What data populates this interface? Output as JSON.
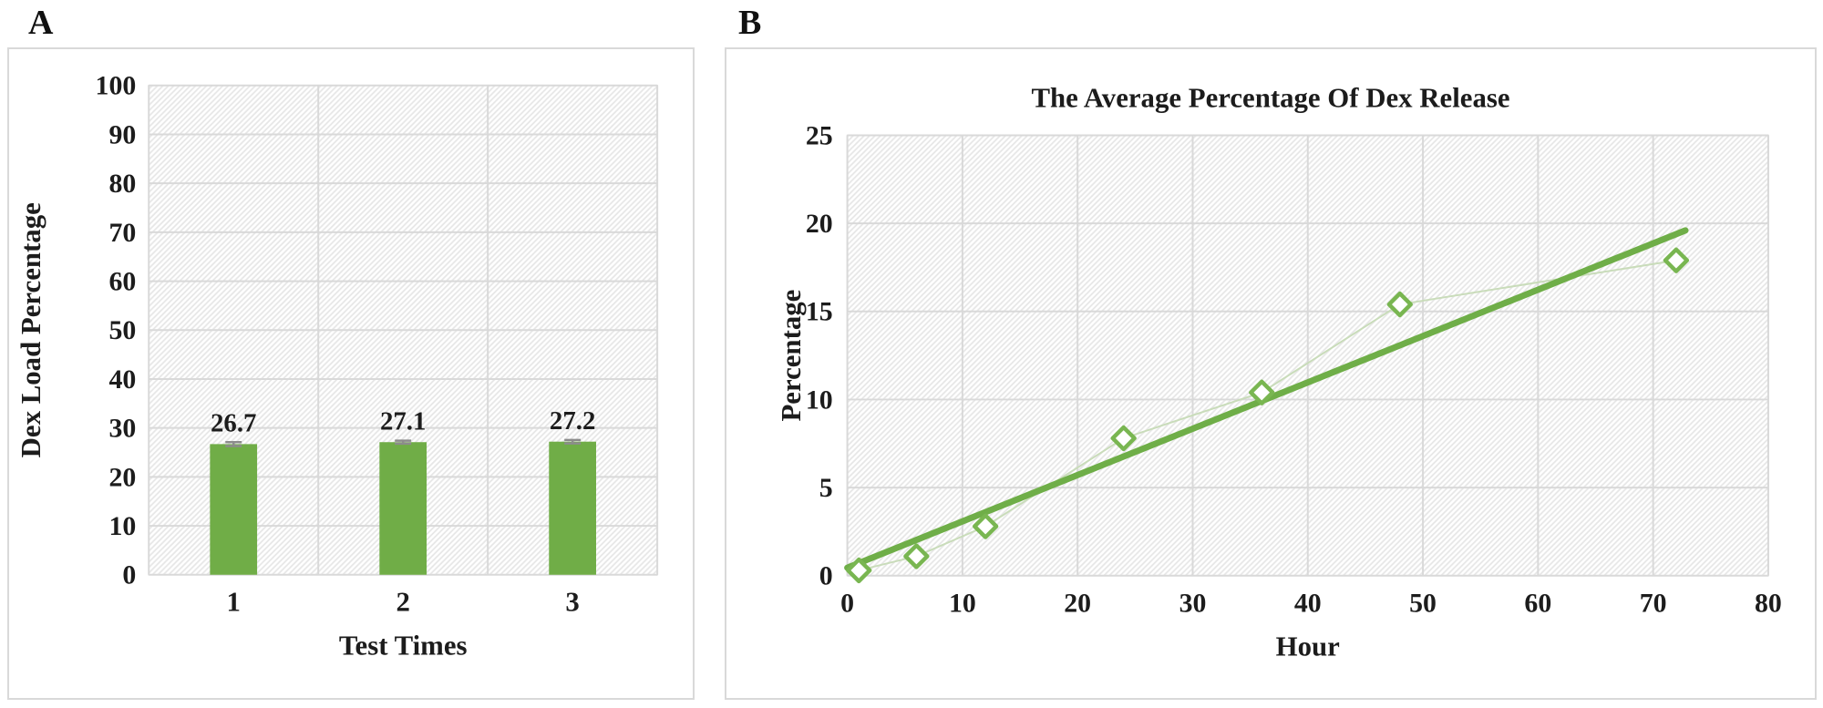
{
  "figure": {
    "background": "#ffffff",
    "border_color": "#d9d9d9",
    "grid_color": "#d9d9d9",
    "hatch_color": "#e7e7e7",
    "text_color": "#1c1c1c"
  },
  "panels": {
    "a": {
      "label": "A"
    },
    "b": {
      "label": "B"
    }
  },
  "chart_data": [
    {
      "id": "chartA",
      "type": "bar",
      "title": "",
      "xlabel": "Test Times",
      "ylabel": "Dex Load Percentage",
      "categories": [
        "1",
        "2",
        "3"
      ],
      "values": [
        26.7,
        27.1,
        27.2
      ],
      "data_labels": [
        "26.7",
        "27.1",
        "27.2"
      ],
      "error_bars": [
        0.4,
        0.3,
        0.35
      ],
      "ylim": [
        0,
        100
      ],
      "ytick_step": 10,
      "grid": true,
      "legend": "none",
      "bar_color": "#70ad47",
      "error_color": "#8c8c8c"
    },
    {
      "id": "chartB",
      "type": "scatter",
      "title": "The Average Percentage Of Dex Release",
      "xlabel": "Hour",
      "ylabel": "Percentage",
      "x": [
        1,
        6,
        12,
        24,
        36,
        48,
        72
      ],
      "y": [
        0.3,
        1.1,
        2.8,
        7.8,
        10.4,
        15.4,
        17.9
      ],
      "xlim": [
        0,
        80
      ],
      "xtick_step": 10,
      "ylim": [
        0,
        25
      ],
      "ytick_step": 5,
      "grid": true,
      "legend": "none",
      "marker": "open-diamond",
      "marker_color": "#79b651",
      "marker_fill": "#ffffff",
      "line_color": "#c9dcba",
      "trendline": {
        "x1": 0,
        "y1": 0.45,
        "x2": 72.8,
        "y2": 19.6,
        "color": "#6fae48",
        "width": 7
      }
    }
  ]
}
